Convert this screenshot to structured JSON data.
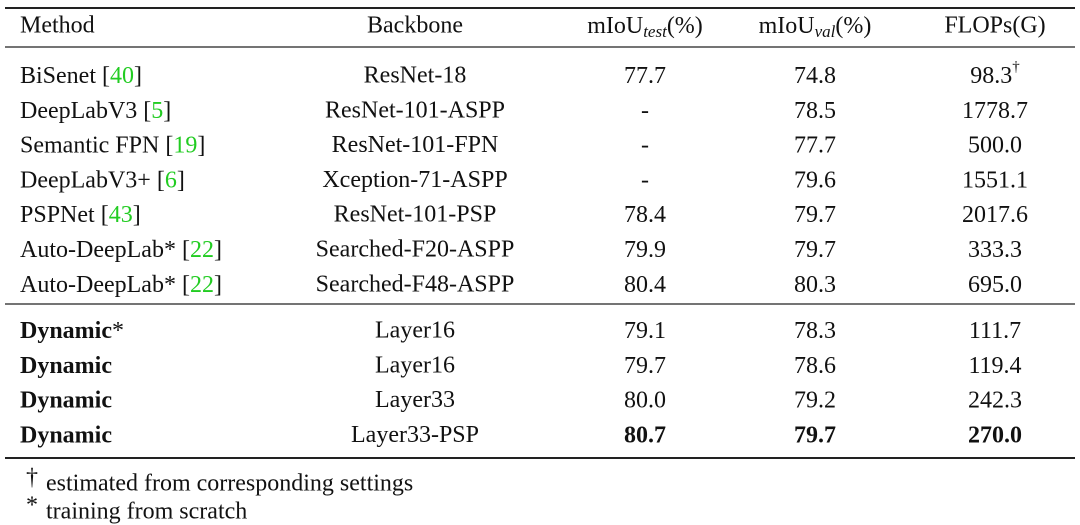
{
  "table": {
    "header": {
      "method": "Method",
      "backbone": "Backbone",
      "test": {
        "base": "mIoU",
        "sub": "test",
        "unit": "(%)"
      },
      "val": {
        "base": "mIoU",
        "sub": "val",
        "unit": "(%)"
      },
      "flops": "FLOPs(G)"
    },
    "groups": [
      [
        {
          "method": "BiSenet",
          "ref": "40",
          "backbone": "ResNet-18",
          "test": "77.7",
          "val": "74.8",
          "flops": "98.3",
          "flops_mark": "†"
        },
        {
          "method": "DeepLabV3",
          "ref": "5",
          "backbone": "ResNet-101-ASPP",
          "test": "-",
          "val": "78.5",
          "flops": "1778.7"
        },
        {
          "method": "Semantic FPN",
          "ref": "19",
          "backbone": "ResNet-101-FPN",
          "test": "-",
          "val": "77.7",
          "flops": "500.0"
        },
        {
          "method": "DeepLabV3+",
          "ref": "6",
          "backbone": "Xception-71-ASPP",
          "test": "-",
          "val": "79.6",
          "flops": "1551.1"
        },
        {
          "method": "PSPNet",
          "ref": "43",
          "backbone": "ResNet-101-PSP",
          "test": "78.4",
          "val": "79.7",
          "flops": "2017.6"
        },
        {
          "method": "Auto-DeepLab*",
          "ref": "22",
          "backbone": "Searched-F20-ASPP",
          "test": "79.9",
          "val": "79.7",
          "flops": "333.3"
        },
        {
          "method": "Auto-DeepLab*",
          "ref": "22",
          "backbone": "Searched-F48-ASPP",
          "test": "80.4",
          "val": "80.3",
          "flops": "695.0"
        }
      ],
      [
        {
          "method": "Dynamic",
          "suffix": "*",
          "method_bold": true,
          "backbone": "Layer16",
          "test": "79.1",
          "val": "78.3",
          "flops": "111.7"
        },
        {
          "method": "Dynamic",
          "method_bold": true,
          "backbone": "Layer16",
          "test": "79.7",
          "val": "78.6",
          "flops": "119.4"
        },
        {
          "method": "Dynamic",
          "method_bold": true,
          "backbone": "Layer33",
          "test": "80.0",
          "val": "79.2",
          "flops": "242.3"
        },
        {
          "method": "Dynamic",
          "method_bold": true,
          "backbone": "Layer33-PSP",
          "test": "80.7",
          "val": "79.7",
          "flops": "270.0",
          "values_bold": true
        }
      ]
    ]
  },
  "footnotes": [
    {
      "mark": "†",
      "text": "estimated from corresponding settings"
    },
    {
      "mark": "*",
      "text": "training from scratch"
    }
  ]
}
